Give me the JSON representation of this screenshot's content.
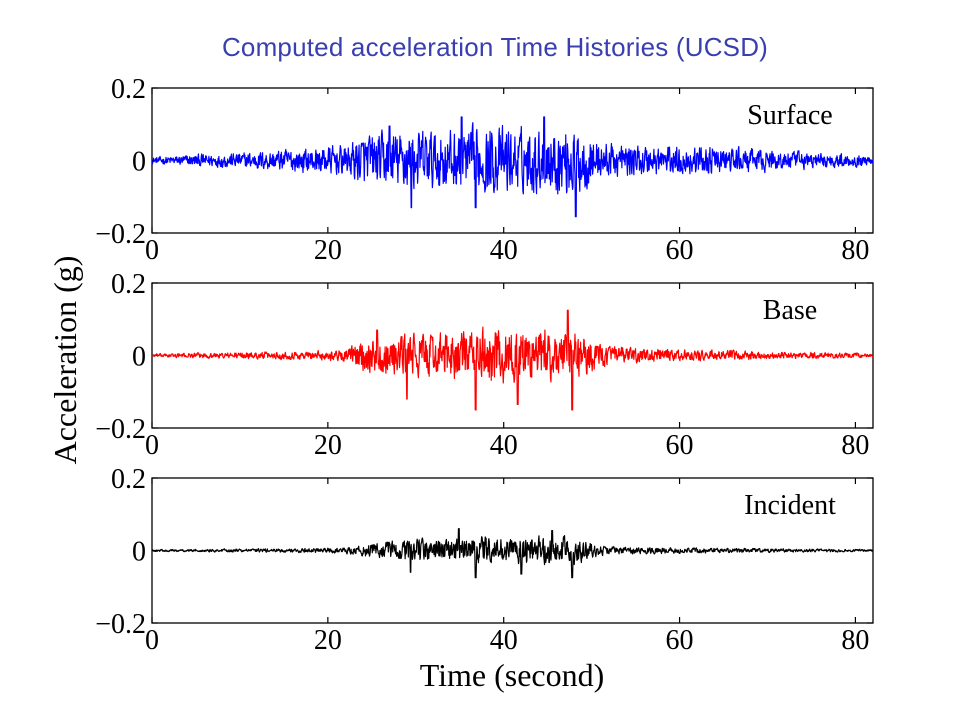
{
  "title": "Computed acceleration Time Histories (UCSD)",
  "chart_data": [
    {
      "type": "line",
      "panel_label": "Surface",
      "color": "#0000ff",
      "xlim": [
        0,
        82
      ],
      "ylim": [
        -0.2,
        0.2
      ],
      "xticks": [
        0,
        20,
        40,
        60,
        80
      ],
      "yticks": [
        0.2,
        0,
        -0.2
      ],
      "ytick_labels": [
        "0.2",
        "0",
        "−0.2"
      ],
      "xtick_labels": [
        "0",
        "20",
        "40",
        "60",
        "80"
      ],
      "envelope": {
        "t": [
          0,
          5,
          10,
          15,
          20,
          22,
          24,
          27,
          30,
          33,
          36,
          39,
          42,
          45,
          48,
          51,
          54,
          57,
          60,
          63,
          66,
          70,
          75,
          80,
          82
        ],
        "a": [
          0.01,
          0.02,
          0.025,
          0.035,
          0.045,
          0.05,
          0.08,
          0.09,
          0.1,
          0.095,
          0.1,
          0.11,
          0.1,
          0.1,
          0.12,
          0.06,
          0.05,
          0.05,
          0.045,
          0.045,
          0.04,
          0.035,
          0.025,
          0.02,
          0.01
        ]
      },
      "peaks": [
        {
          "t": 29.5,
          "v": -0.13
        },
        {
          "t": 35.2,
          "v": 0.12
        },
        {
          "t": 36.8,
          "v": -0.13
        },
        {
          "t": 44.6,
          "v": 0.12
        },
        {
          "t": 48.2,
          "v": -0.155
        },
        {
          "t": 27.0,
          "v": 0.095
        }
      ]
    },
    {
      "type": "line",
      "panel_label": "Base",
      "color": "#ff0000",
      "xlim": [
        0,
        82
      ],
      "ylim": [
        -0.2,
        0.2
      ],
      "xticks": [
        0,
        20,
        40,
        60,
        80
      ],
      "yticks": [
        0.2,
        0,
        -0.2
      ],
      "ytick_labels": [
        "0.2",
        "0",
        "−0.2"
      ],
      "xtick_labels": [
        "0",
        "20",
        "40",
        "60",
        "80"
      ],
      "envelope": {
        "t": [
          0,
          5,
          10,
          15,
          20,
          22,
          24,
          27,
          30,
          33,
          36,
          39,
          42,
          45,
          48,
          51,
          54,
          57,
          60,
          63,
          66,
          70,
          75,
          80,
          82
        ],
        "a": [
          0.005,
          0.008,
          0.01,
          0.012,
          0.015,
          0.02,
          0.05,
          0.06,
          0.07,
          0.07,
          0.08,
          0.085,
          0.09,
          0.085,
          0.08,
          0.035,
          0.025,
          0.02,
          0.018,
          0.016,
          0.015,
          0.012,
          0.01,
          0.008,
          0.005
        ]
      },
      "peaks": [
        {
          "t": 29.0,
          "v": -0.12
        },
        {
          "t": 36.8,
          "v": -0.15
        },
        {
          "t": 47.3,
          "v": 0.125
        },
        {
          "t": 47.8,
          "v": -0.15
        },
        {
          "t": 41.6,
          "v": -0.135
        },
        {
          "t": 25.6,
          "v": 0.07
        }
      ]
    },
    {
      "type": "line",
      "panel_label": "Incident",
      "color": "#000000",
      "xlim": [
        0,
        82
      ],
      "ylim": [
        -0.2,
        0.2
      ],
      "xticks": [
        0,
        20,
        40,
        60,
        80
      ],
      "yticks": [
        0.2,
        0,
        -0.2
      ],
      "ytick_labels": [
        "0.2",
        "0",
        "−0.2"
      ],
      "xtick_labels": [
        "0",
        "20",
        "40",
        "60",
        "80"
      ],
      "envelope": {
        "t": [
          0,
          5,
          10,
          15,
          20,
          22,
          24,
          27,
          30,
          33,
          36,
          39,
          42,
          45,
          48,
          51,
          54,
          57,
          60,
          63,
          66,
          70,
          75,
          80,
          82
        ],
        "a": [
          0.003,
          0.004,
          0.005,
          0.006,
          0.008,
          0.01,
          0.02,
          0.03,
          0.035,
          0.035,
          0.04,
          0.045,
          0.045,
          0.045,
          0.045,
          0.015,
          0.012,
          0.01,
          0.009,
          0.008,
          0.007,
          0.006,
          0.005,
          0.004,
          0.003
        ]
      },
      "peaks": [
        {
          "t": 29.4,
          "v": -0.06
        },
        {
          "t": 36.8,
          "v": -0.075
        },
        {
          "t": 34.9,
          "v": 0.06
        },
        {
          "t": 47.8,
          "v": -0.075
        },
        {
          "t": 42.0,
          "v": -0.065
        },
        {
          "t": 45.5,
          "v": 0.055
        }
      ]
    }
  ],
  "y_axis_label": "Acceleration (g)",
  "x_axis_label": "Time (second)"
}
